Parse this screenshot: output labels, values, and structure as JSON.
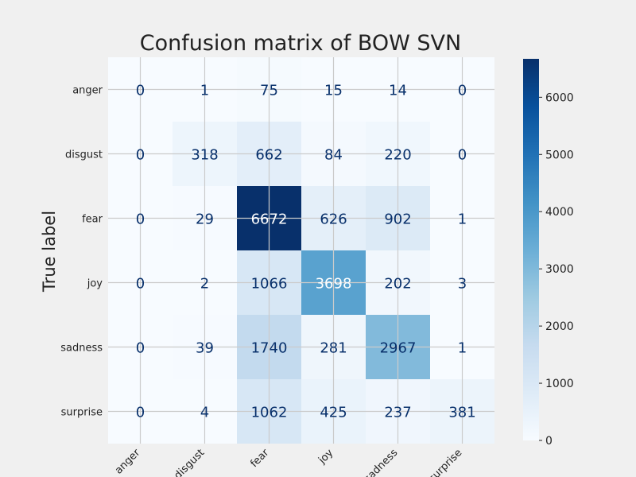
{
  "chart_data": {
    "type": "heatmap",
    "title": "Confusion matrix of BOW SVN",
    "xlabel": "",
    "ylabel": "True label",
    "x_categories": [
      "anger",
      "disgust",
      "fear",
      "joy",
      "sadness",
      "surprise"
    ],
    "y_categories": [
      "anger",
      "disgust",
      "fear",
      "joy",
      "sadness",
      "surprise"
    ],
    "matrix": [
      [
        0,
        1,
        75,
        15,
        14,
        0
      ],
      [
        0,
        318,
        662,
        84,
        220,
        0
      ],
      [
        0,
        29,
        6672,
        626,
        902,
        1
      ],
      [
        0,
        2,
        1066,
        3698,
        202,
        3
      ],
      [
        0,
        39,
        1740,
        281,
        2967,
        1
      ],
      [
        0,
        4,
        1062,
        425,
        237,
        381
      ]
    ],
    "colormap": "Blues",
    "colorbar": {
      "min": 0,
      "max": 6672,
      "ticks": [
        0,
        1000,
        2000,
        3000,
        4000,
        5000,
        6000
      ]
    },
    "grid": true
  }
}
